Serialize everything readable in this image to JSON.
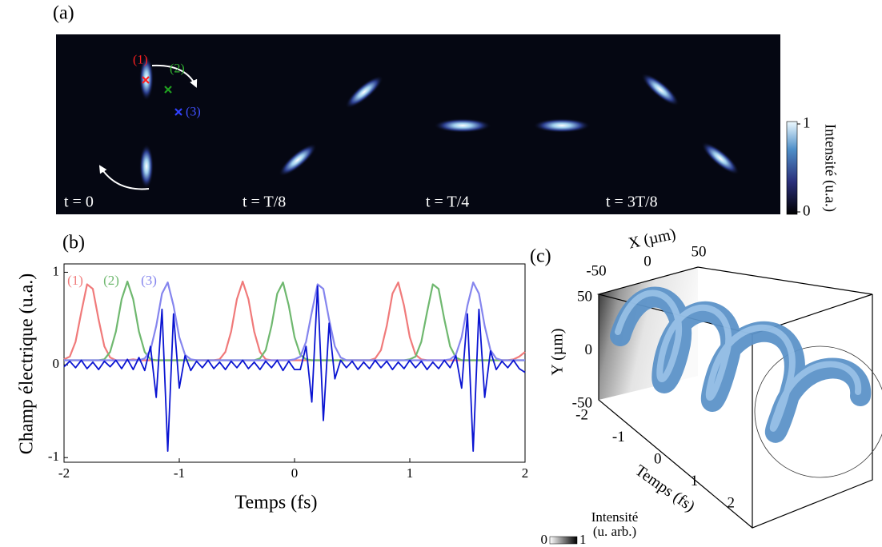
{
  "panel_a": {
    "label": "(a)",
    "frames": [
      "t = 0",
      "t = T/8",
      "t = T/4",
      "t = 3T/8"
    ],
    "markers": [
      "(1)",
      "(2)",
      "(3)"
    ],
    "colorbar": {
      "label": "Intensité (u.a.)",
      "ticks": [
        0,
        1
      ]
    }
  },
  "chart_data": {
    "type": "line",
    "panel_label": "(b)",
    "x_label": "Temps (fs)",
    "y_label": "Champ électrique (u.a.)",
    "xlim": [
      -2,
      2
    ],
    "ylim": [
      -1.05,
      1.09
    ],
    "xticks": [
      -2,
      -1,
      0,
      1,
      2
    ],
    "yticks": [
      -1,
      0,
      1
    ],
    "x": [
      -2,
      -1.95,
      -1.9,
      -1.85,
      -1.8,
      -1.75,
      -1.7,
      -1.65,
      -1.6,
      -1.55,
      -1.5,
      -1.45,
      -1.4,
      -1.35,
      -1.3,
      -1.25,
      -1.2,
      -1.15,
      -1.1,
      -1.05,
      -1,
      -0.95,
      -0.9,
      -0.85,
      -0.8,
      -0.75,
      -0.7,
      -0.65,
      -0.6,
      -0.55,
      -0.5,
      -0.45,
      -0.4,
      -0.35,
      -0.3,
      -0.25,
      -0.2,
      -0.15,
      -0.1,
      -0.05,
      0,
      0.05,
      0.1,
      0.15,
      0.2,
      0.25,
      0.3,
      0.35,
      0.4,
      0.45,
      0.5,
      0.55,
      0.6,
      0.65,
      0.7,
      0.75,
      0.8,
      0.85,
      0.9,
      0.95,
      1,
      1.05,
      1.1,
      1.15,
      1.2,
      1.25,
      1.3,
      1.35,
      1.4,
      1.45,
      1.5,
      1.55,
      1.6,
      1.65,
      1.7,
      1.75,
      1.8,
      1.85,
      1.9,
      1.95,
      2
    ],
    "series": [
      {
        "name": "(1)",
        "color": "#f07a7a",
        "values": [
          0.06,
          0.09,
          0.25,
          0.57,
          0.87,
          0.82,
          0.49,
          0.2,
          0.08,
          0.05,
          0.05,
          0.05,
          0.06,
          0.05,
          0.05,
          0.05,
          0.05,
          0.05,
          0.05,
          0.05,
          0.05,
          0.05,
          0.05,
          0.05,
          0.05,
          0.05,
          0.05,
          0.06,
          0.14,
          0.36,
          0.71,
          0.9,
          0.71,
          0.36,
          0.14,
          0.06,
          0.05,
          0.05,
          0.05,
          0.05,
          0.05,
          0.05,
          0.05,
          0.05,
          0.05,
          0.05,
          0.05,
          0.05,
          0.05,
          0.05,
          0.05,
          0.05,
          0.05,
          0.05,
          0.07,
          0.16,
          0.42,
          0.77,
          0.89,
          0.64,
          0.3,
          0.11,
          0.06,
          0.05,
          0.05,
          0.05,
          0.05,
          0.05,
          0.05,
          0.05,
          0.05,
          0.05,
          0.05,
          0.05,
          0.05,
          0.05,
          0.05,
          0.05,
          0.06,
          0.09,
          0.14
        ]
      },
      {
        "name": "(2)",
        "color": "#6fb86f",
        "values": [
          0.05,
          0.05,
          0.05,
          0.05,
          0.05,
          0.05,
          0.05,
          0.06,
          0.14,
          0.36,
          0.71,
          0.9,
          0.71,
          0.36,
          0.14,
          0.06,
          0.05,
          0.05,
          0.05,
          0.05,
          0.05,
          0.05,
          0.05,
          0.05,
          0.05,
          0.05,
          0.05,
          0.05,
          0.05,
          0.05,
          0.05,
          0.05,
          0.05,
          0.05,
          0.07,
          0.16,
          0.42,
          0.77,
          0.89,
          0.64,
          0.3,
          0.11,
          0.06,
          0.05,
          0.05,
          0.05,
          0.05,
          0.05,
          0.05,
          0.05,
          0.05,
          0.05,
          0.05,
          0.05,
          0.05,
          0.05,
          0.05,
          0.05,
          0.05,
          0.05,
          0.06,
          0.09,
          0.25,
          0.57,
          0.87,
          0.82,
          0.49,
          0.2,
          0.08,
          0.05,
          0.05,
          0.05,
          0.05,
          0.05,
          0.05,
          0.05,
          0.05,
          0.05,
          0.05,
          0.05,
          0.05
        ]
      },
      {
        "name": "(3)",
        "color": "#8585ee",
        "values": [
          0.05,
          0.05,
          0.05,
          0.05,
          0.05,
          0.05,
          0.05,
          0.05,
          0.05,
          0.05,
          0.05,
          0.05,
          0.05,
          0.05,
          0.07,
          0.16,
          0.42,
          0.77,
          0.89,
          0.64,
          0.3,
          0.11,
          0.06,
          0.05,
          0.05,
          0.05,
          0.05,
          0.05,
          0.05,
          0.05,
          0.05,
          0.05,
          0.05,
          0.05,
          0.05,
          0.05,
          0.05,
          0.05,
          0.05,
          0.05,
          0.06,
          0.09,
          0.25,
          0.57,
          0.87,
          0.82,
          0.49,
          0.2,
          0.08,
          0.05,
          0.05,
          0.05,
          0.05,
          0.05,
          0.05,
          0.05,
          0.05,
          0.05,
          0.05,
          0.05,
          0.05,
          0.05,
          0.05,
          0.05,
          0.05,
          0.05,
          0.05,
          0.06,
          0.11,
          0.3,
          0.64,
          0.89,
          0.77,
          0.42,
          0.16,
          0.07,
          0.05,
          0.05,
          0.05,
          0.05,
          0.05
        ]
      },
      {
        "color": "#0a14d2",
        "values": [
          -0.02,
          0.04,
          -0.03,
          0.05,
          -0.04,
          0.03,
          -0.05,
          0.04,
          -0.02,
          0.05,
          -0.04,
          0.06,
          -0.05,
          0.08,
          -0.06,
          0.2,
          -0.35,
          0.6,
          -0.93,
          0.55,
          -0.25,
          0.1,
          -0.06,
          0.04,
          -0.03,
          0.05,
          -0.04,
          0.03,
          -0.05,
          0.04,
          -0.03,
          0.05,
          -0.04,
          0.03,
          -0.05,
          0.04,
          -0.03,
          0.05,
          -0.06,
          0.04,
          -0.05,
          -0.05,
          0.2,
          -0.4,
          0.85,
          -0.6,
          0.45,
          -0.15,
          0.05,
          -0.03,
          0.04,
          -0.05,
          0.03,
          -0.04,
          0.05,
          -0.03,
          0.04,
          -0.05,
          0.03,
          -0.04,
          0.05,
          -0.03,
          0.04,
          -0.05,
          0.03,
          -0.04,
          0.05,
          -0.03,
          0.1,
          -0.25,
          0.55,
          -0.93,
          0.6,
          -0.35,
          0.15,
          -0.05,
          0.04,
          -0.03,
          0.05,
          -0.04,
          -0.08
        ]
      }
    ]
  },
  "panel_c": {
    "label": "(c)",
    "x_label": "X (µm)",
    "x_ticks": [
      -50,
      0,
      50
    ],
    "y_label": "Y (µm)",
    "y_ticks": [
      50,
      0,
      -50
    ],
    "t_label": "Temps (fs)",
    "t_ticks": [
      -2,
      -1,
      0,
      1,
      2
    ],
    "colorbar": {
      "label_lines": [
        "Intensité",
        "(u. arb.)"
      ],
      "ticks": [
        0,
        1
      ]
    }
  }
}
